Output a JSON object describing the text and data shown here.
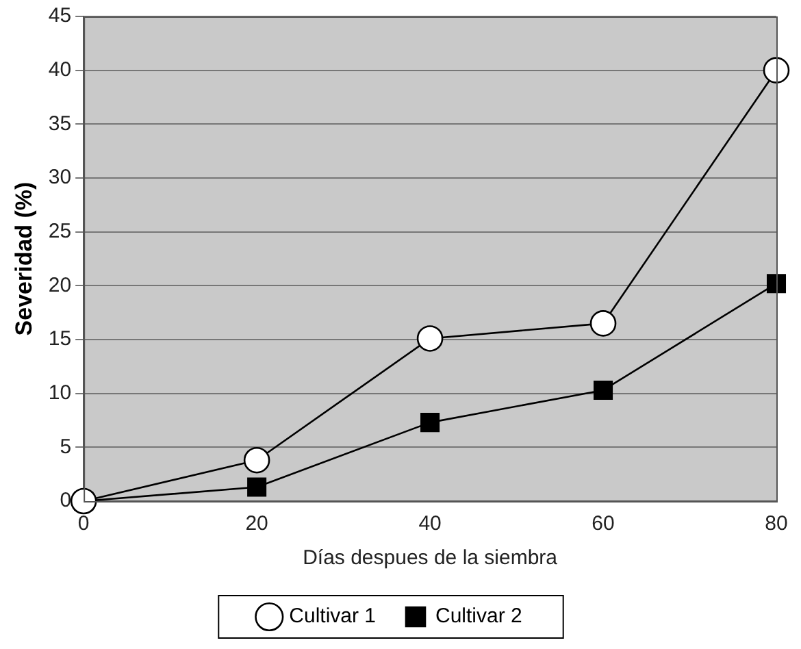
{
  "chart_data": {
    "type": "line",
    "xlabel": "Días despues de la siembra",
    "ylabel": "Severidad (%)",
    "x": [
      0,
      20,
      40,
      60,
      80
    ],
    "series": [
      {
        "name": "Cultivar 1",
        "color": "#000000",
        "marker": "circle",
        "values": [
          0,
          3.8,
          15.1,
          16.5,
          40
        ]
      },
      {
        "name": "Cultivar 2",
        "color": "#000000",
        "marker": "square",
        "values": [
          0,
          1.3,
          7.3,
          10.3,
          20.2
        ]
      }
    ],
    "xlim": [
      0,
      80
    ],
    "xticks": [
      0,
      20,
      40,
      60,
      80
    ],
    "ylim": [
      0,
      45
    ],
    "yticks": [
      0,
      5,
      10,
      15,
      20,
      25,
      30,
      35,
      40,
      45
    ],
    "grid": "y",
    "legend": "bottom",
    "line_style": "solid"
  }
}
